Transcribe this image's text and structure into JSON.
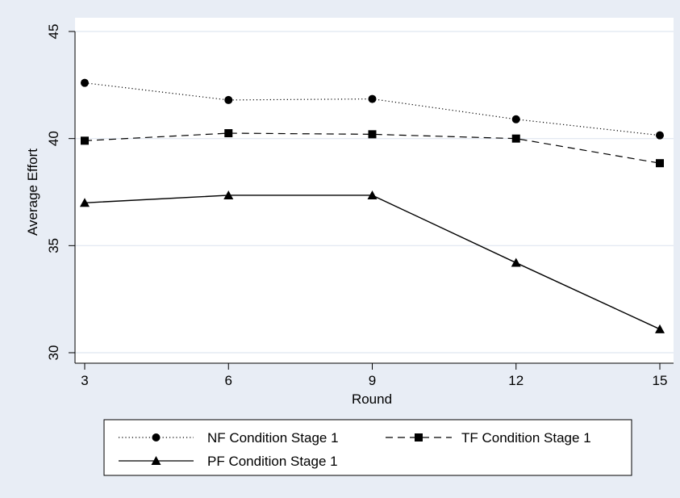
{
  "chart_data": {
    "type": "line",
    "title": "",
    "xlabel": "Round",
    "ylabel": "Average Effort",
    "x": [
      3,
      6,
      9,
      12,
      15
    ],
    "xticks": [
      "3",
      "6",
      "9",
      "12",
      "15"
    ],
    "yticks": [
      "30",
      "35",
      "40",
      "45"
    ],
    "xlim": [
      3,
      15
    ],
    "ylim": [
      30,
      45
    ],
    "grid": true,
    "legend_position": "bottom",
    "series": [
      {
        "name": "NF Condition Stage 1",
        "values": [
          42.6,
          41.8,
          41.85,
          40.9,
          40.15
        ],
        "marker": "circle",
        "line_style": "dotted"
      },
      {
        "name": "TF Condition Stage 1",
        "values": [
          39.9,
          40.25,
          40.2,
          40.0,
          38.85
        ],
        "marker": "square",
        "line_style": "dashed"
      },
      {
        "name": "PF Condition Stage 1",
        "values": [
          37.0,
          37.35,
          37.35,
          34.2,
          31.1
        ],
        "marker": "triangle",
        "line_style": "solid"
      }
    ],
    "colors": {
      "plot_background": "#ffffff",
      "page_background": "#e8edf5",
      "gridline": "#dfe6f0",
      "series": "#000000"
    }
  }
}
